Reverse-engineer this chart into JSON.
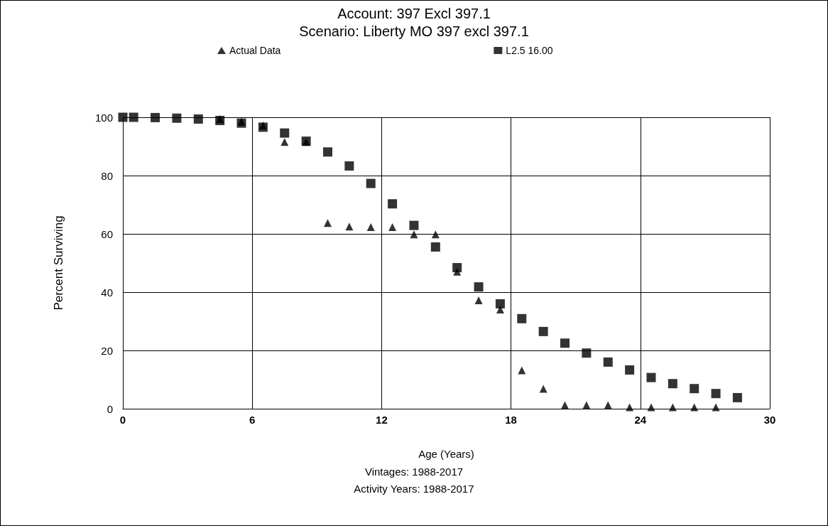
{
  "chart_data": {
    "type": "scatter",
    "title": "Account: 397 Excl 397.1",
    "subtitle": "Scenario: Liberty MO 397 excl 397.1",
    "xlabel": "Age (Years)",
    "ylabel": "Percent Surviving",
    "annotations": [
      "Vintages: 1988-2017",
      "Activity Years: 1988-2017"
    ],
    "x": [
      0,
      0.5,
      1.5,
      2.5,
      3.5,
      4.5,
      5.5,
      6.5,
      7.5,
      8.5,
      9.5,
      10.5,
      11.5,
      12.5,
      13.5,
      14.5,
      15.5,
      16.5,
      17.5,
      18.5,
      19.5,
      20.5,
      21.5,
      22.5,
      23.5,
      24.5,
      25.5,
      26.5,
      27.5,
      28.5
    ],
    "series": [
      {
        "name": "Actual Data",
        "color": "#000000",
        "marker": "triangle",
        "values": [
          null,
          null,
          null,
          null,
          null,
          99.4,
          98.5,
          97.2,
          91.5,
          91.5,
          63.7,
          62.5,
          62.3,
          62.3,
          59.8,
          59.8,
          47,
          37.2,
          34,
          13.2,
          6.8,
          1.2,
          1.2,
          1.2,
          0.5,
          0.5,
          0.5,
          0.5,
          0.5,
          null
        ]
      },
      {
        "name": "L2.5 16.00",
        "color": "#000000",
        "marker": "square",
        "values": [
          100,
          100,
          99.9,
          99.7,
          99.4,
          98.9,
          98,
          96.6,
          94.6,
          91.8,
          88.1,
          83.3,
          77.3,
          70.3,
          62.9,
          55.5,
          48.4,
          41.8,
          36,
          30.9,
          26.5,
          22.5,
          19.1,
          16,
          13.3,
          10.7,
          8.6,
          6.9,
          5.2,
          3.8
        ]
      }
    ],
    "xlim": [
      0,
      30
    ],
    "xticks": [
      0,
      6,
      12,
      18,
      24,
      30
    ],
    "ylim": [
      0,
      100
    ],
    "yticks": [
      0,
      20,
      40,
      60,
      80,
      100
    ],
    "grid": true,
    "legend": "top"
  }
}
